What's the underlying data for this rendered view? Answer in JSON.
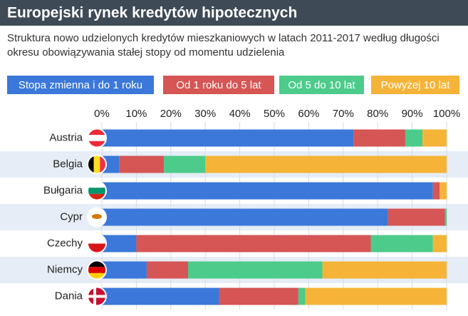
{
  "chart_data": {
    "type": "stacked-barh",
    "title": "Europejski rynek kredytów hipotecznych",
    "subtitle": "Struktura nowo udzielonych kredytów mieszkaniowych w latach 2011-2017 według długości okresu obowiązywania stałej stopy od momentu udzielenia",
    "categories": [
      "Austria",
      "Belgia",
      "Bułgaria",
      "Cypr",
      "Czechy",
      "Niemcy",
      "Dania"
    ],
    "series": [
      {
        "name": "Stopa zmienna i do 1 roku",
        "color": "#3b78d9",
        "values": [
          73,
          5,
          96,
          83,
          10,
          13,
          34
        ]
      },
      {
        "name": "Od 1 roku do 5 lat",
        "color": "#d65555",
        "values": [
          15,
          13,
          2,
          16.5,
          68,
          12,
          23
        ]
      },
      {
        "name": "Od 5 do 10 lat",
        "color": "#4ccb8b",
        "values": [
          5,
          12,
          0,
          0.5,
          18,
          39,
          2
        ]
      },
      {
        "name": "Powyżej 10 lat",
        "color": "#f5b437",
        "values": [
          7,
          70,
          2,
          0,
          4,
          36,
          41
        ]
      }
    ],
    "xlim": [
      0,
      100
    ],
    "xticks": [
      {
        "value": 0,
        "label": "0%"
      },
      {
        "value": 10,
        "label": "10%"
      },
      {
        "value": 20,
        "label": "20%"
      },
      {
        "value": 30,
        "label": "30%"
      },
      {
        "value": 40,
        "label": "40%"
      },
      {
        "value": 50,
        "label": "50%"
      },
      {
        "value": 60,
        "label": "60%"
      },
      {
        "value": 70,
        "label": "70%"
      },
      {
        "value": 80,
        "label": "80%"
      },
      {
        "value": 90,
        "label": "90%"
      },
      {
        "value": 100,
        "label": "100%"
      }
    ],
    "grid": true
  }
}
